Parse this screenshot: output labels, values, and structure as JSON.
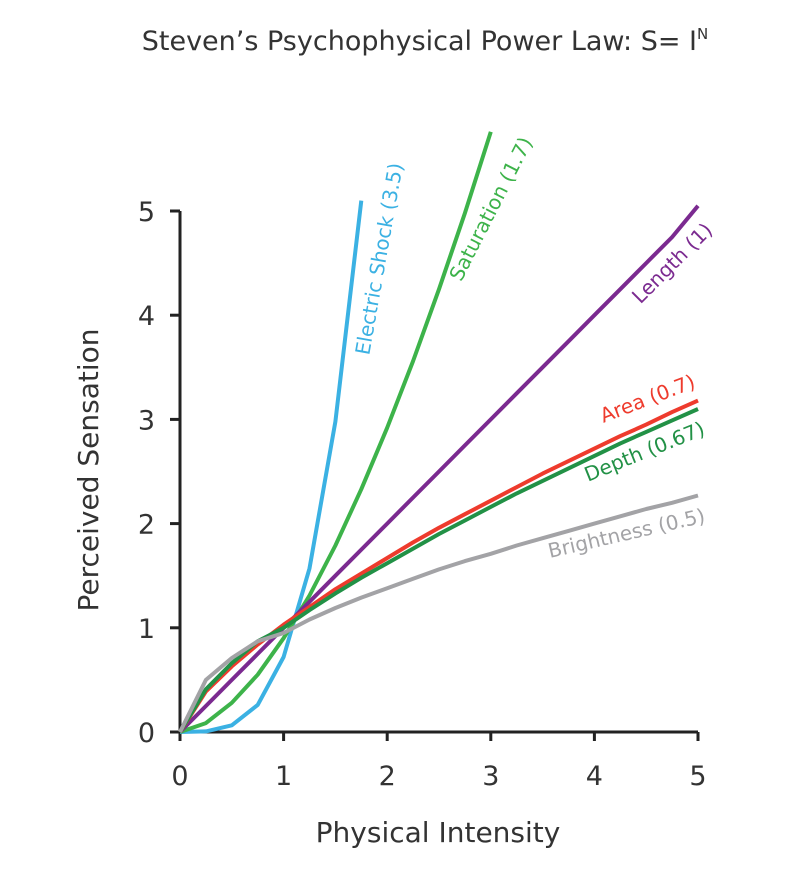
{
  "chart_data": {
    "type": "line",
    "title": "Steven’s Psychophysical Power Law: S= I",
    "title_exponent": "N",
    "x_label": "Physical Intensity",
    "y_label": "Perceived Sensation",
    "x": [
      0,
      0.25,
      0.5,
      0.75,
      1,
      1.25,
      1.5,
      1.75,
      2,
      2.25,
      2.5,
      2.75,
      3,
      3.25,
      3.5,
      3.75,
      4,
      4.25,
      4.5,
      4.75,
      5
    ],
    "series": [
      {
        "name": "Electric Shock (3.5)",
        "color": "#3bb1e3",
        "values": [
          0,
          0.006,
          0.064,
          0.26,
          0.72,
          1.57,
          2.98,
          5.1,
          null,
          null,
          null,
          null,
          null,
          null,
          null,
          null,
          null,
          null,
          null,
          null,
          null
        ]
      },
      {
        "name": "Saturation (1.7)",
        "color": "#3db34a",
        "values": [
          0,
          0.085,
          0.28,
          0.55,
          0.9,
          1.31,
          1.79,
          2.33,
          2.92,
          3.56,
          4.25,
          4.98,
          5.76,
          null,
          null,
          null,
          null,
          null,
          null,
          null,
          null
        ]
      },
      {
        "name": "Length (1)",
        "color": "#7b2a90",
        "values": [
          0,
          0.25,
          0.5,
          0.75,
          1,
          1.25,
          1.5,
          1.75,
          2,
          2.25,
          2.5,
          2.75,
          3,
          3.25,
          3.5,
          3.75,
          4,
          4.25,
          4.5,
          4.75,
          5.05
        ]
      },
      {
        "name": "Area (0.7)",
        "color": "#ee3b2d",
        "values": [
          0,
          0.39,
          0.63,
          0.84,
          1.03,
          1.2,
          1.37,
          1.52,
          1.67,
          1.82,
          1.96,
          2.09,
          2.22,
          2.35,
          2.48,
          2.6,
          2.72,
          2.84,
          2.95,
          3.07,
          3.18
        ]
      },
      {
        "name": "Depth (0.67)",
        "color": "#229146",
        "values": [
          0,
          0.41,
          0.66,
          0.87,
          1.0,
          1.17,
          1.33,
          1.48,
          1.62,
          1.76,
          1.9,
          2.03,
          2.16,
          2.29,
          2.41,
          2.53,
          2.65,
          2.77,
          2.88,
          2.99,
          3.1
        ]
      },
      {
        "name": "Brightness (0.5)",
        "color": "#a3a3a6",
        "values": [
          0,
          0.5,
          0.71,
          0.87,
          0.95,
          1.08,
          1.19,
          1.29,
          1.38,
          1.47,
          1.56,
          1.64,
          1.71,
          1.79,
          1.86,
          1.93,
          2.0,
          2.07,
          2.14,
          2.2,
          2.27
        ]
      }
    ],
    "xlim": [
      0,
      5
    ],
    "ylim": [
      0,
      5
    ],
    "xticks": [
      0,
      1,
      2,
      3,
      4,
      5
    ],
    "yticks": [
      0,
      1,
      2,
      3,
      4,
      5
    ]
  }
}
